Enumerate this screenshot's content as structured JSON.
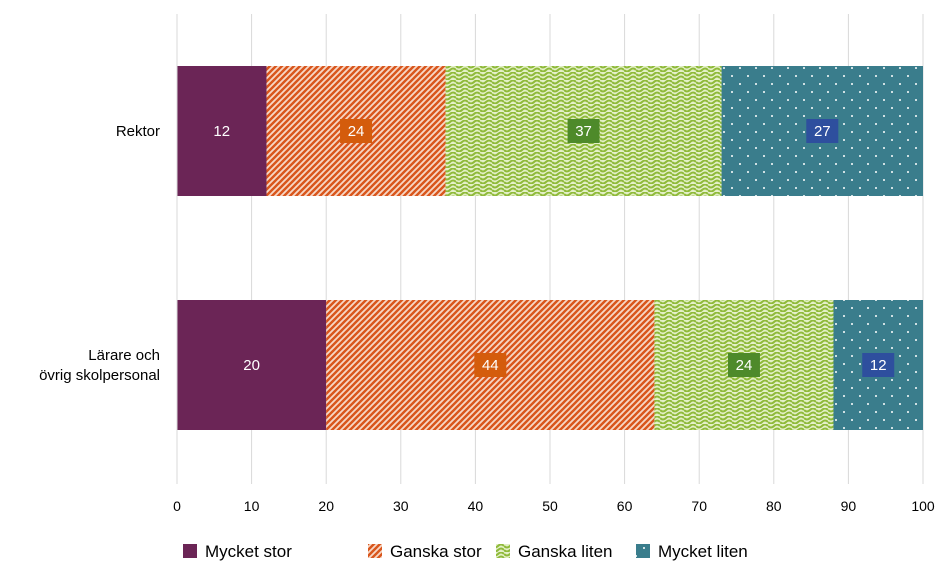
{
  "chart_data": {
    "type": "bar",
    "orientation": "horizontal",
    "stacked": true,
    "categories": [
      "Rektor",
      "Lärare och övrig skolpersonal"
    ],
    "category_lines": [
      [
        "Rektor"
      ],
      [
        "Lärare och",
        "övrig skolpersonal"
      ]
    ],
    "series": [
      {
        "name": "Mycket stor",
        "values": [
          12,
          20
        ],
        "color": "#6b2556",
        "label_color": "#6b2556",
        "pattern": "solid"
      },
      {
        "name": "Ganska stor",
        "values": [
          24,
          44
        ],
        "color": "#d9561c",
        "label_color": "#d45c0c",
        "pattern": "diagonal-stripes"
      },
      {
        "name": "Ganska liten",
        "values": [
          37,
          24
        ],
        "color": "#8fba3a",
        "label_color": "#4e8a2a",
        "pattern": "zigzag"
      },
      {
        "name": "Mycket liten",
        "values": [
          27,
          12
        ],
        "color": "#3a7d8c",
        "label_color": "#2e4f9e",
        "pattern": "dots"
      }
    ],
    "xlim": [
      0,
      100
    ],
    "xticks": [
      0,
      10,
      20,
      30,
      40,
      50,
      60,
      70,
      80,
      90,
      100
    ],
    "xlabel": "",
    "ylabel": "",
    "title": "",
    "grid": "vertical",
    "legend_position": "bottom"
  }
}
